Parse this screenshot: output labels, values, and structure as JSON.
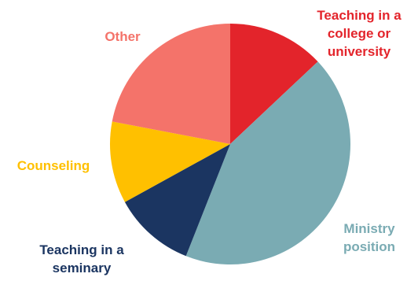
{
  "chart_data": {
    "type": "pie",
    "start_angle_deg": 0,
    "direction": "clockwise",
    "slices": [
      {
        "name": "Teaching in a college or university",
        "label_lines": [
          "Teaching in a",
          "college or",
          "university"
        ],
        "value": 13,
        "color": "#e3242b"
      },
      {
        "name": "Ministry position",
        "label_lines": [
          "Ministry",
          "position"
        ],
        "value": 43,
        "color": "#7aabb3"
      },
      {
        "name": "Teaching in a seminary",
        "label_lines": [
          "Teaching in a",
          "seminary"
        ],
        "value": 11,
        "color": "#1b3561"
      },
      {
        "name": "Counseling",
        "label_lines": [
          "Counseling"
        ],
        "value": 11,
        "color": "#ffc000"
      },
      {
        "name": "Other",
        "label_lines": [
          "Other"
        ],
        "value": 22,
        "color": "#f4736a"
      }
    ]
  }
}
